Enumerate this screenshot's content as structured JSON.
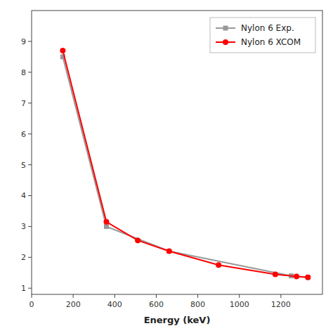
{
  "chart_data": {
    "type": "line",
    "xlabel": "Energy (keV)",
    "series": [
      {
        "name": "Nylon 6 Exp.",
        "color": "#999999",
        "marker": "square",
        "x": [
          150,
          360,
          662,
          1250,
          1330
        ],
        "values": [
          8.5,
          3.0,
          2.2,
          1.4,
          1.35
        ]
      },
      {
        "name": "Nylon 6 XCOM",
        "color": "#ff0000",
        "marker": "circle",
        "x": [
          150,
          360,
          511,
          662,
          900,
          1173,
          1275,
          1330
        ],
        "values": [
          8.7,
          3.15,
          2.55,
          2.2,
          1.75,
          1.45,
          1.38,
          1.35
        ]
      }
    ],
    "xlim": [
      0,
      1400
    ],
    "ylim": [
      0.8,
      10.0
    ],
    "xticks": [
      0,
      200,
      400,
      600,
      800,
      1000,
      1200
    ],
    "yticks": [
      1,
      2,
      3,
      4,
      5,
      6,
      7,
      8,
      9
    ],
    "grid": false,
    "legend": "upper right"
  }
}
